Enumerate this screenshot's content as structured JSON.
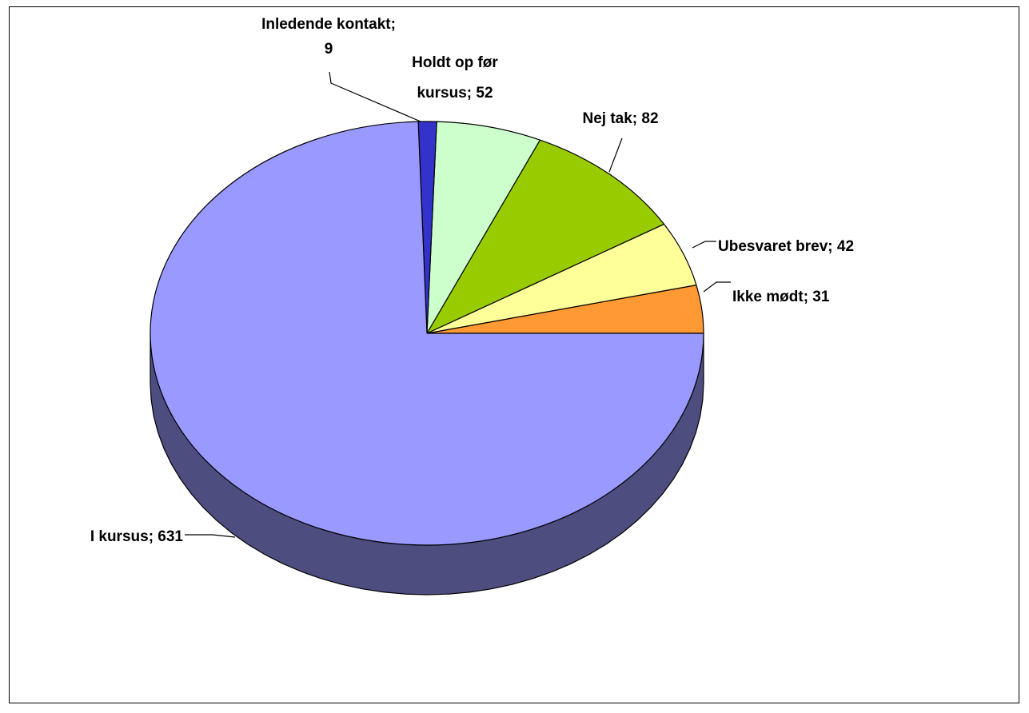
{
  "chart_data": {
    "type": "pie",
    "style": "3d",
    "labels": [
      "Ikke mødt",
      "Ubesvaret brev",
      "Nej tak",
      "Holdt op før kursus",
      "Inledende kontakt",
      "I kursus"
    ],
    "values": [
      31,
      42,
      82,
      52,
      9,
      631
    ],
    "data_labels": [
      [
        "Ikke mødt; 31"
      ],
      [
        "Ubesvaret brev; 42"
      ],
      [
        "Nej tak; 82"
      ],
      [
        "Holdt op før",
        "kursus; 52"
      ],
      [
        "Inledende kontakt;",
        "9"
      ],
      [
        "I kursus; 631"
      ]
    ],
    "colors": [
      "#ff9933",
      "#ffff99",
      "#99cc00",
      "#ccffcc",
      "#3333cc",
      "#9999ff"
    ],
    "side_colors": [
      "#b36b24",
      "#b3b36b",
      "#6b8f00",
      "#8fb38f",
      "#24248f",
      "#4d4d80"
    ],
    "legend": "none"
  }
}
